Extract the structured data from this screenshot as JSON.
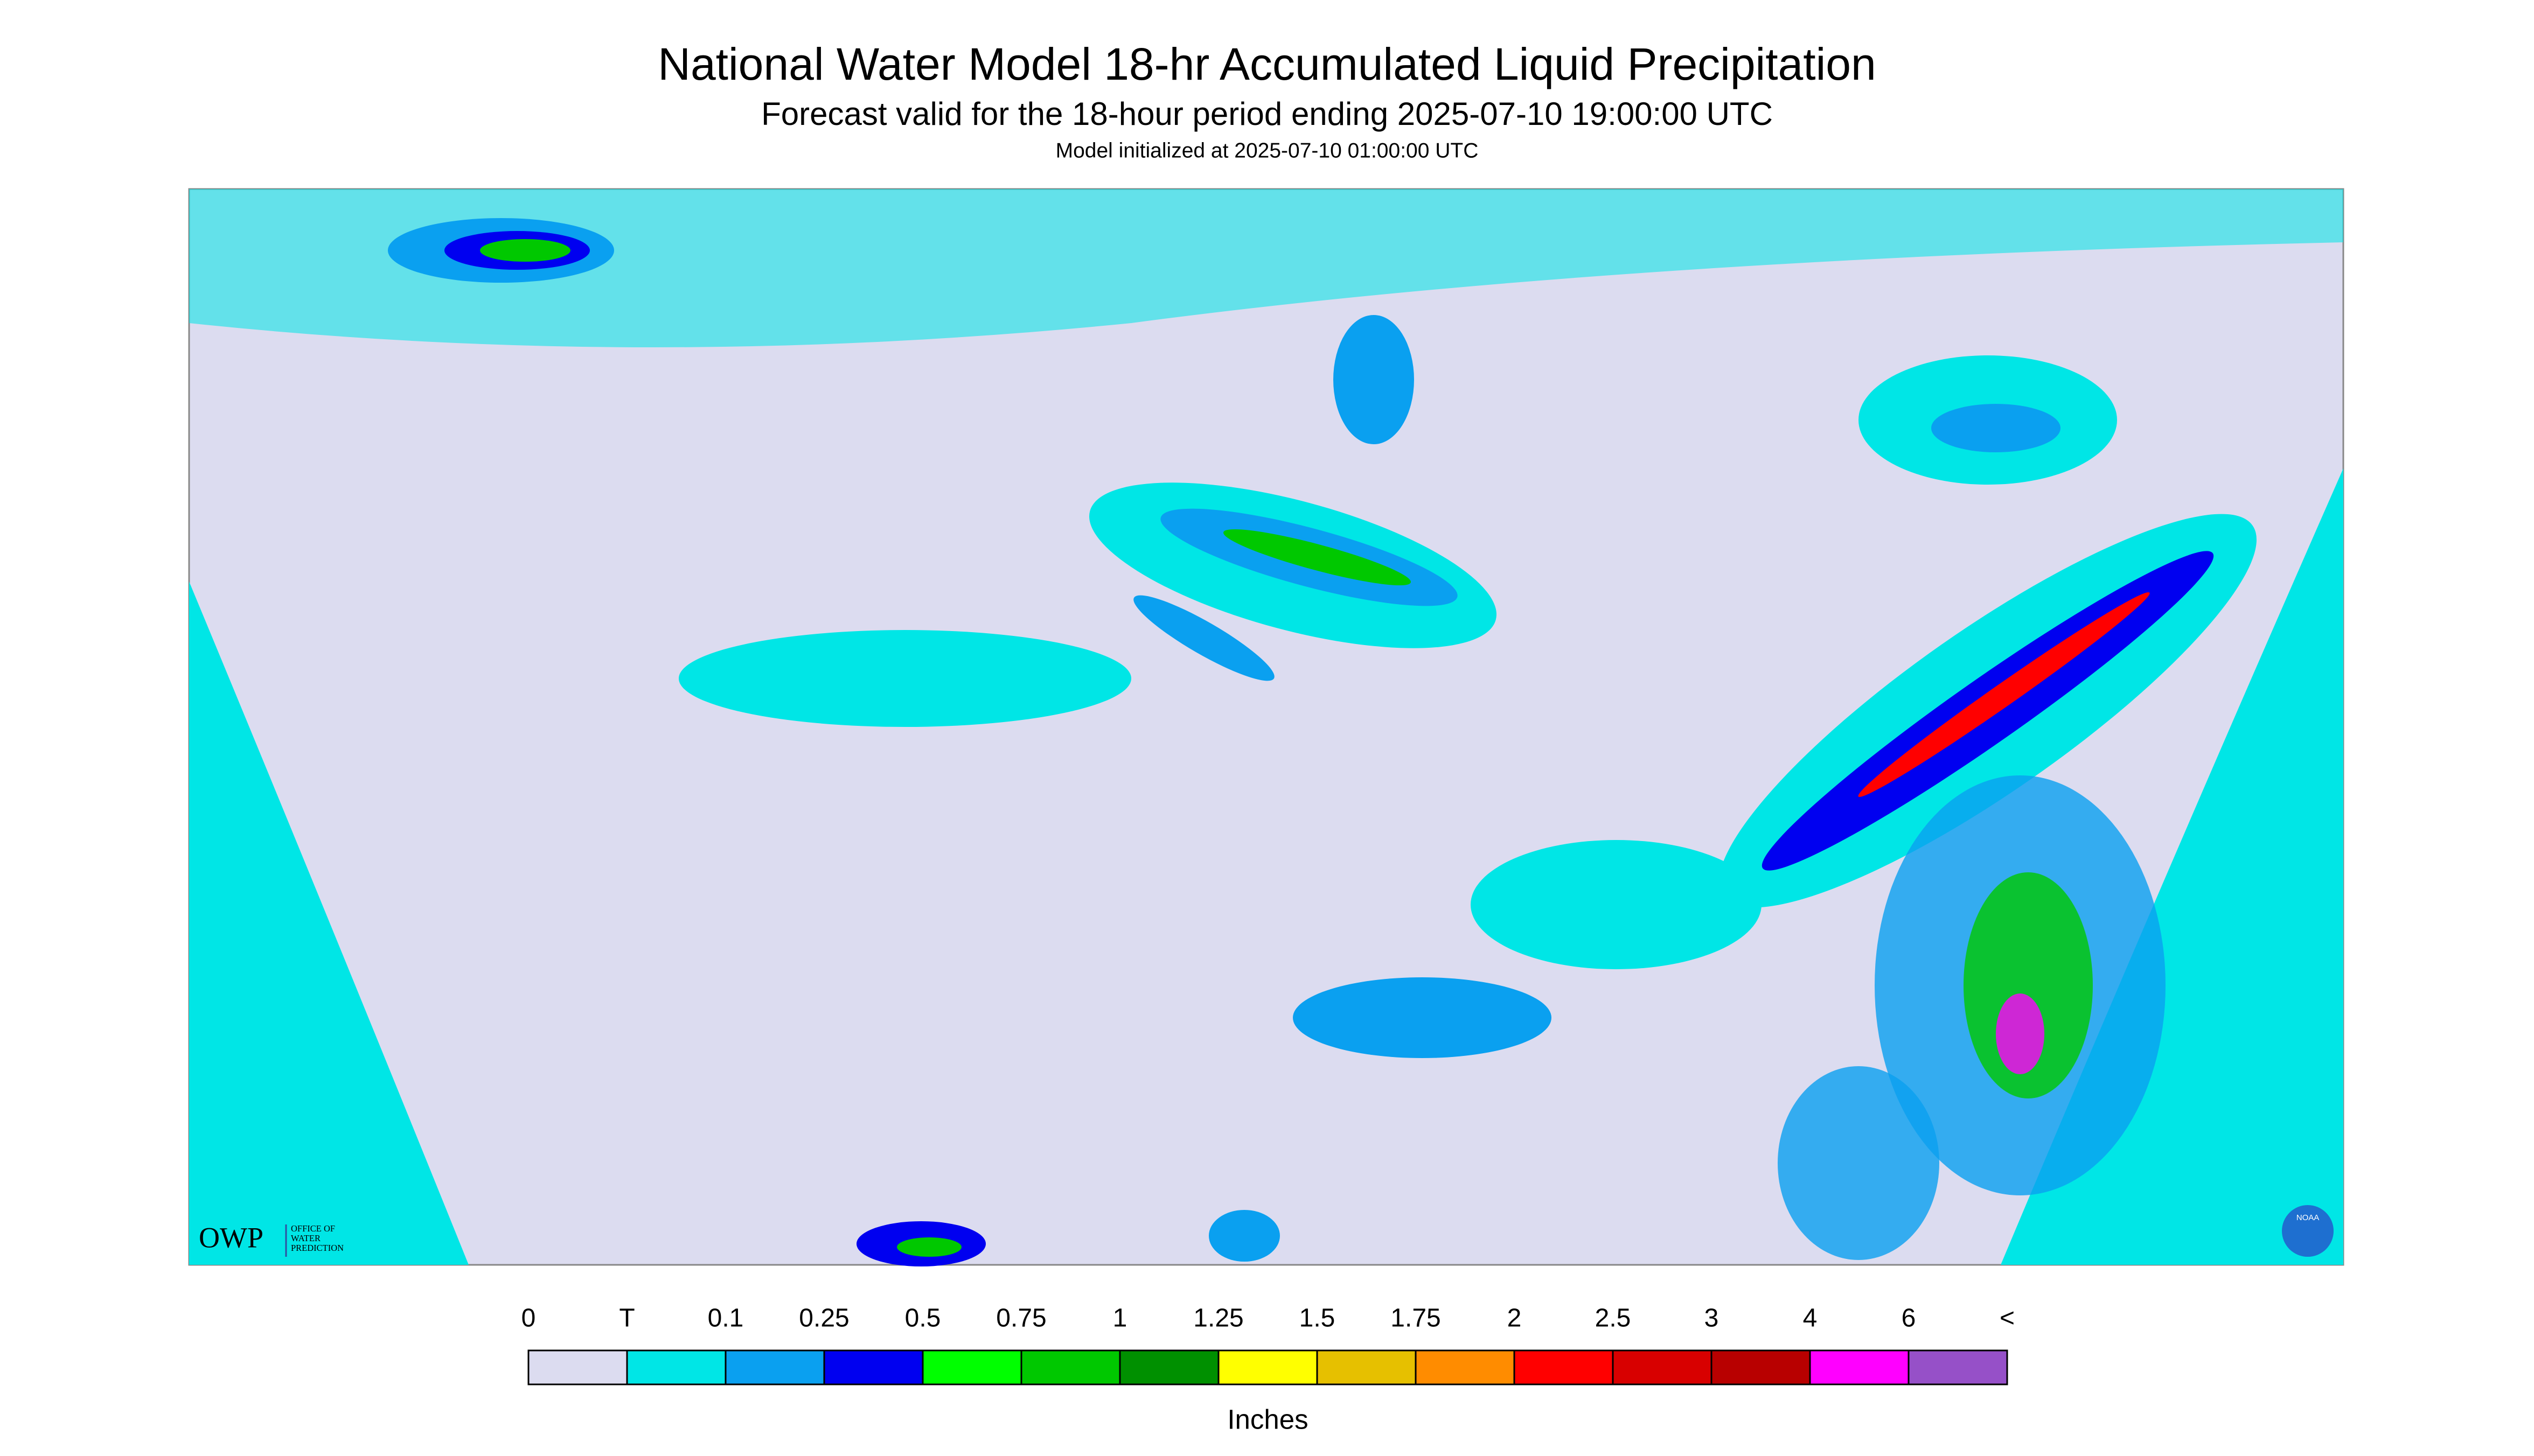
{
  "header": {
    "title": "National Water Model 18-hr Accumulated Liquid Precipitation",
    "subtitle": "Forecast valid for the 18-hour period ending 2025-07-10 19:00:00 UTC",
    "note": "Model initialized at 2025-07-10 01:00:00 UTC"
  },
  "legend": {
    "labels": [
      0,
      "T",
      0.1,
      0.25,
      0.5,
      0.75,
      1,
      1.25,
      1.5,
      1.75,
      2,
      2.5,
      3,
      4,
      6,
      "<"
    ],
    "colors": [
      "#dcdcf0",
      "#00e6e6",
      "#0aa0f0",
      "#0000f0",
      "#00ff00",
      "#00c800",
      "#009000",
      "#ffff00",
      "#e6c000",
      "#ff8c00",
      "#ff0000",
      "#d80000",
      "#b80000",
      "#ff00ff",
      "#9650c8"
    ],
    "unit": "Inches"
  },
  "logo": {
    "acronym": "OWP",
    "lines": [
      "OFFICE OF",
      "WATER",
      "PREDICTION"
    ],
    "badge": "NOAA"
  }
}
